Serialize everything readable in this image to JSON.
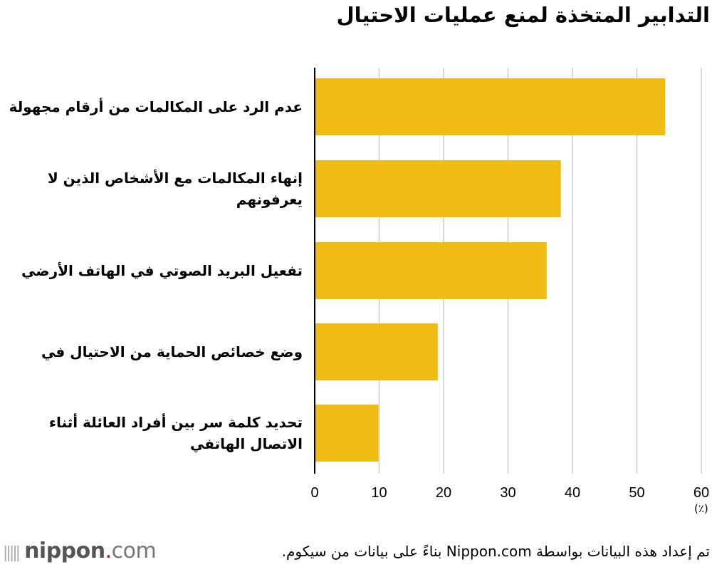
{
  "chart_data": {
    "type": "bar",
    "orientation": "horizontal",
    "title": "التدابير المتخذة لمنع عمليات الاحتيال",
    "categories": [
      "عدم الرد على المكالمات من أرقام مجهولة",
      "إنهاء المكالمات مع الأشخاص الذين لا يعرفونهم",
      "تفعيل البريد الصوتي في الهاتف الأرضي",
      "وضع خصائص الحماية من الاحتيال في",
      "تحديد كلمة سر بين أفراد العائلة أثناء الاتصال الهاتفي"
    ],
    "values": [
      54.4,
      38.2,
      36.0,
      19.1,
      9.9
    ],
    "xlim": [
      0,
      60
    ],
    "xticks": [
      "0",
      "10",
      "20",
      "30",
      "40",
      "50",
      "60"
    ],
    "unit_label": "(٪)",
    "grid": true,
    "bar_color": "#f0bb14",
    "grid_color": "#cccccc"
  },
  "footer": {
    "source": "تم إعداد هذه البيانات بواسطة Nippon.com بناءً على بيانات من سيكوم.",
    "logo": "nippon.com"
  }
}
